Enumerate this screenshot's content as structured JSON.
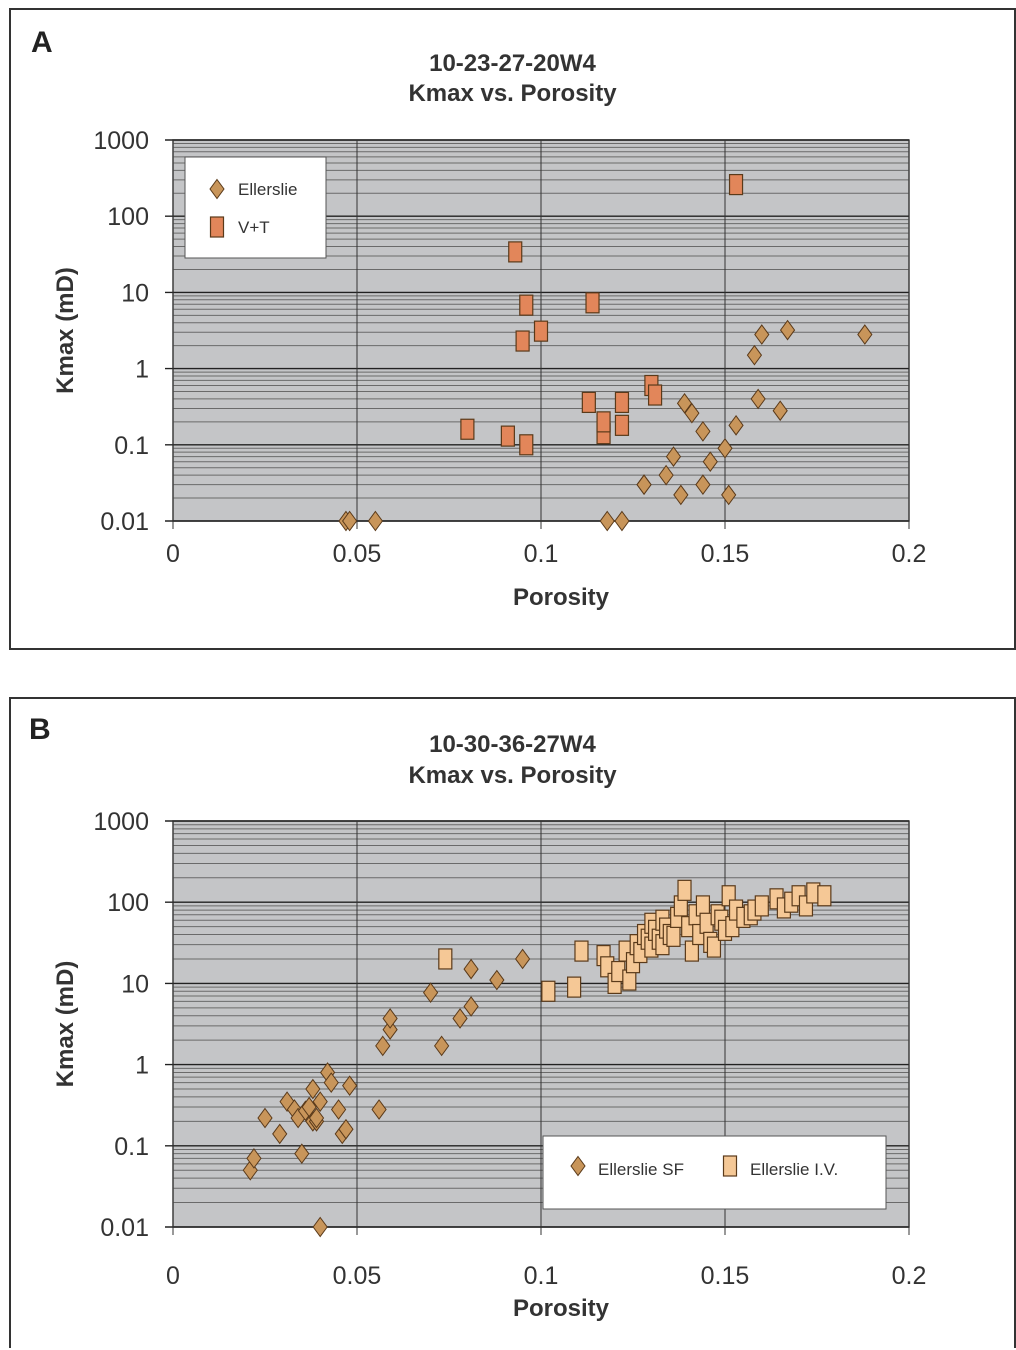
{
  "chart_data": [
    {
      "panel_label": "A",
      "type": "scatter",
      "title": "10-23-27-20W4",
      "subtitle": "Kmax vs. Porosity",
      "xlabel": "Porosity",
      "ylabel": "Kmax (mD)",
      "xlim": [
        0,
        0.2
      ],
      "ylim": [
        0.01,
        1000
      ],
      "yscale": "log",
      "xticks": [
        "0",
        "0.05",
        "0.1",
        "0.15",
        "0.2"
      ],
      "yticks": [
        "0.01",
        "0.1",
        "1",
        "10",
        "100",
        "1000"
      ],
      "grid": true,
      "legend_position": "top-left",
      "colors": {
        "diamond": "#C8955A",
        "square": "#E2865A",
        "plot_bg": "#C4C5C7"
      },
      "series": [
        {
          "name": "Ellerslie",
          "marker": "diamond",
          "x": [
            0.047,
            0.048,
            0.055,
            0.118,
            0.122,
            0.128,
            0.128,
            0.134,
            0.136,
            0.138,
            0.139,
            0.141,
            0.144,
            0.144,
            0.146,
            0.15,
            0.151,
            0.153,
            0.158,
            0.159,
            0.16,
            0.165,
            0.167,
            0.188
          ],
          "y": [
            0.01,
            0.01,
            0.01,
            0.01,
            0.01,
            0.03,
            0.03,
            0.04,
            0.07,
            0.022,
            0.35,
            0.26,
            0.15,
            0.03,
            0.06,
            0.09,
            0.022,
            0.18,
            1.5,
            0.4,
            2.8,
            0.28,
            3.2,
            2.8
          ]
        },
        {
          "name": "V+T",
          "marker": "square",
          "x": [
            0.08,
            0.091,
            0.093,
            0.095,
            0.096,
            0.096,
            0.1,
            0.113,
            0.114,
            0.117,
            0.117,
            0.122,
            0.122,
            0.13,
            0.131,
            0.153
          ],
          "y": [
            0.16,
            0.13,
            34,
            2.3,
            6.8,
            0.1,
            3.1,
            0.36,
            7.3,
            0.14,
            0.2,
            0.18,
            0.36,
            0.6,
            0.45,
            260
          ]
        }
      ]
    },
    {
      "panel_label": "B",
      "type": "scatter",
      "title": "10-30-36-27W4",
      "subtitle": "Kmax vs. Porosity",
      "xlabel": "Porosity",
      "ylabel": "Kmax (mD)",
      "xlim": [
        0,
        0.2
      ],
      "ylim": [
        0.01,
        1000
      ],
      "yscale": "log",
      "xticks": [
        "0",
        "0.05",
        "0.1",
        "0.15",
        "0.2"
      ],
      "yticks": [
        "0.01",
        "0.1",
        "1",
        "10",
        "100",
        "1000"
      ],
      "grid": true,
      "legend_position": "bottom-right",
      "colors": {
        "diamond": "#C8955A",
        "square": "#F5C896",
        "plot_bg": "#C4C5C7"
      },
      "series": [
        {
          "name": "Ellerslie SF",
          "marker": "diamond",
          "x": [
            0.021,
            0.022,
            0.025,
            0.029,
            0.031,
            0.033,
            0.034,
            0.035,
            0.036,
            0.037,
            0.038,
            0.038,
            0.039,
            0.039,
            0.04,
            0.04,
            0.042,
            0.043,
            0.045,
            0.046,
            0.047,
            0.048,
            0.056,
            0.057,
            0.059,
            0.059,
            0.07,
            0.073,
            0.078,
            0.081,
            0.081,
            0.088,
            0.095
          ],
          "y": [
            0.05,
            0.07,
            0.22,
            0.14,
            0.35,
            0.28,
            0.22,
            0.08,
            0.27,
            0.3,
            0.5,
            0.2,
            0.2,
            0.22,
            0.35,
            0.01,
            0.8,
            0.6,
            0.28,
            0.14,
            0.16,
            0.55,
            0.28,
            1.7,
            2.7,
            3.7,
            7.7,
            1.7,
            3.7,
            5.2,
            15,
            11,
            20
          ]
        },
        {
          "name": "Ellerslie I.V.",
          "marker": "square",
          "x": [
            0.074,
            0.102,
            0.109,
            0.111,
            0.117,
            0.118,
            0.12,
            0.121,
            0.123,
            0.124,
            0.125,
            0.126,
            0.127,
            0.128,
            0.129,
            0.13,
            0.13,
            0.131,
            0.132,
            0.133,
            0.133,
            0.134,
            0.135,
            0.136,
            0.137,
            0.138,
            0.139,
            0.14,
            0.141,
            0.142,
            0.143,
            0.144,
            0.145,
            0.146,
            0.147,
            0.148,
            0.149,
            0.15,
            0.151,
            0.152,
            0.153,
            0.155,
            0.157,
            0.158,
            0.16,
            0.164,
            0.166,
            0.168,
            0.17,
            0.172,
            0.174,
            0.177
          ],
          "y": [
            20,
            8,
            9,
            25,
            22,
            16,
            10,
            14,
            25,
            11,
            18,
            30,
            24,
            40,
            35,
            28,
            55,
            45,
            35,
            60,
            30,
            48,
            40,
            38,
            65,
            90,
            140,
            50,
            25,
            70,
            40,
            90,
            55,
            32,
            28,
            70,
            60,
            45,
            120,
            50,
            80,
            65,
            70,
            80,
            90,
            110,
            85,
            100,
            120,
            90,
            130,
            120
          ]
        }
      ]
    }
  ]
}
